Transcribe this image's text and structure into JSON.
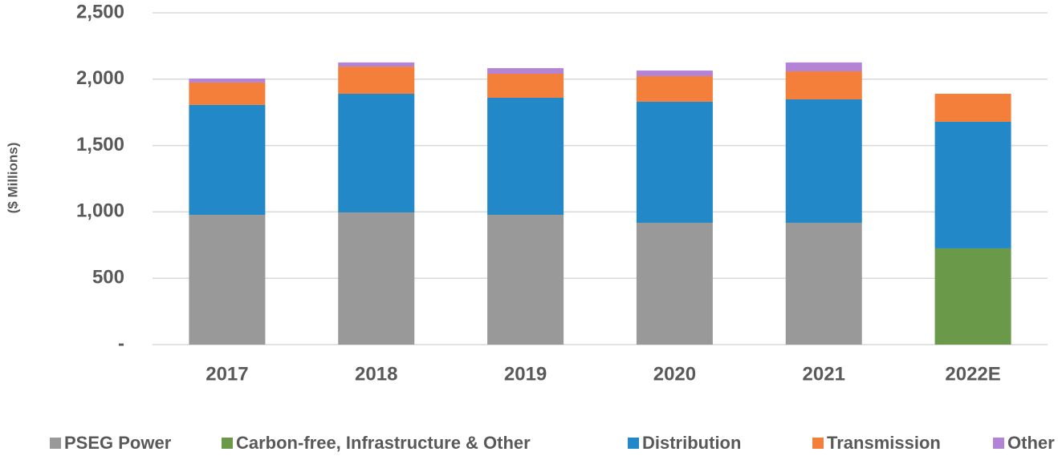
{
  "chart_data": {
    "type": "stacked_bar",
    "y_label": "($ Millions)",
    "categories": [
      "2017",
      "2018",
      "2019",
      "2020",
      "2021",
      "2022E"
    ],
    "series": [
      {
        "name": "PSEG Power",
        "color": "#999999",
        "values": [
          978,
          996,
          978,
          918,
          918,
          null
        ]
      },
      {
        "name": "Carbon-free, Infrastructure & Other",
        "color": "#6a994a",
        "values": [
          null,
          null,
          null,
          null,
          null,
          725
        ]
      },
      {
        "name": "Distribution",
        "color": "#2388c8",
        "values": [
          828,
          894,
          882,
          912,
          930,
          954
        ]
      },
      {
        "name": "Transmission",
        "color": "#f47f3a",
        "values": [
          169,
          205,
          181,
          193,
          211,
          211
        ]
      },
      {
        "name": "Other",
        "color": "#b383d6",
        "values": [
          30,
          31,
          42,
          42,
          67,
          null
        ]
      }
    ],
    "ylim": [
      0,
      2500
    ],
    "yticks": [
      {
        "value": 0,
        "label": "-"
      },
      500,
      {
        "value": 1000,
        "label": "1,000"
      },
      {
        "value": 1500,
        "label": "1,500"
      },
      {
        "value": 2000,
        "label": "2,000"
      },
      {
        "value": 2500,
        "label": "2,500"
      }
    ],
    "grid": true,
    "legend": "bottom"
  }
}
